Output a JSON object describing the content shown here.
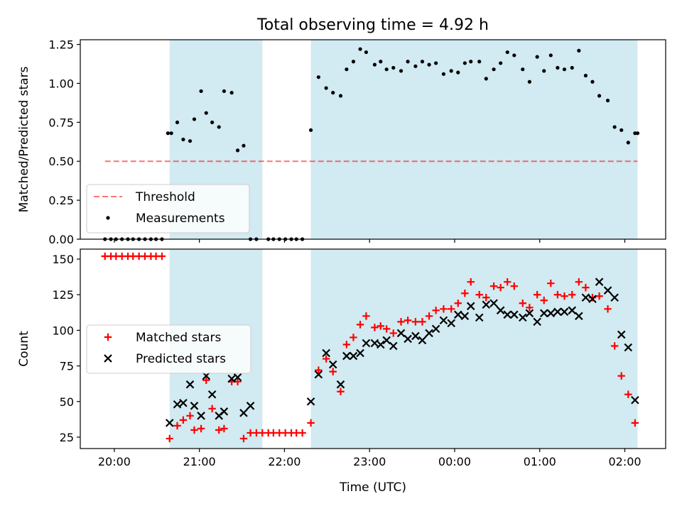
{
  "chart_data": {
    "title": "Total observing time = 4.92 h",
    "xlabel": "Time (UTC)",
    "x_ticks": [
      "20:00",
      "21:00",
      "22:00",
      "23:00",
      "00:00",
      "01:00",
      "02:00"
    ],
    "x_tick_hours": [
      0,
      1,
      2,
      3,
      4,
      5,
      6
    ],
    "x_range_hours": [
      -0.4,
      6.48
    ],
    "observing_windows_hours": [
      [
        0.65,
        1.74
      ],
      [
        2.31,
        6.15
      ]
    ],
    "window_color": "#add8e6",
    "panels": [
      {
        "type": "scatter",
        "ylabel": "Matched/Predicted stars",
        "ylim": [
          0,
          1.28
        ],
        "yticks": [
          "0.00",
          "0.25",
          "0.50",
          "0.75",
          "1.00",
          "1.25"
        ],
        "ytick_values": [
          0,
          0.25,
          0.5,
          0.75,
          1.0,
          1.25
        ],
        "legend": {
          "placement": "lower-left",
          "entries": [
            "Threshold",
            "Measurements"
          ]
        },
        "threshold": {
          "name": "Threshold",
          "value": 0.5,
          "x_range_hours": [
            -0.11,
            6.15
          ],
          "color": "#ff0000",
          "style": "dashed"
        },
        "series": [
          {
            "name": "Measurements",
            "color": "#000000",
            "x_hours": [
              -0.11,
              -0.04,
              0.02,
              0.09,
              0.16,
              0.22,
              0.29,
              0.36,
              0.43,
              0.49,
              0.56,
              0.63,
              0.67,
              0.74,
              0.81,
              0.89,
              0.94,
              1.02,
              1.08,
              1.15,
              1.23,
              1.29,
              1.38,
              1.45,
              1.52,
              1.6,
              1.67,
              1.81,
              1.87,
              1.94,
              2.01,
              2.08,
              2.14,
              2.21,
              2.31,
              2.4,
              2.49,
              2.57,
              2.66,
              2.73,
              2.81,
              2.89,
              2.96,
              3.06,
              3.13,
              3.2,
              3.28,
              3.37,
              3.45,
              3.54,
              3.62,
              3.7,
              3.78,
              3.87,
              3.96,
              4.04,
              4.12,
              4.19,
              4.29,
              4.37,
              4.46,
              4.54,
              4.62,
              4.7,
              4.8,
              4.88,
              4.97,
              5.05,
              5.13,
              5.21,
              5.29,
              5.38,
              5.46,
              5.54,
              5.62,
              5.7,
              5.8,
              5.88,
              5.96,
              6.04,
              6.12,
              6.15
            ],
            "values": [
              0,
              0,
              0,
              0,
              0,
              0,
              0,
              0,
              0,
              0,
              0,
              0.68,
              0.68,
              0.75,
              0.64,
              0.63,
              0.77,
              0.95,
              0.81,
              0.75,
              0.72,
              0.95,
              0.94,
              0.57,
              0.6,
              0,
              0,
              0,
              0,
              0,
              0,
              0,
              0,
              0,
              0.7,
              1.04,
              0.97,
              0.94,
              0.92,
              1.09,
              1.14,
              1.22,
              1.2,
              1.12,
              1.14,
              1.09,
              1.1,
              1.08,
              1.14,
              1.11,
              1.14,
              1.12,
              1.13,
              1.06,
              1.08,
              1.07,
              1.13,
              1.14,
              1.14,
              1.03,
              1.09,
              1.13,
              1.2,
              1.18,
              1.09,
              1.01,
              1.17,
              1.08,
              1.18,
              1.1,
              1.09,
              1.1,
              1.21,
              1.05,
              1.01,
              0.92,
              0.89,
              0.72,
              0.7,
              0.62,
              0.68,
              0.68
            ]
          }
        ]
      },
      {
        "type": "scatter",
        "ylabel": "Count",
        "ylim": [
          17,
          157
        ],
        "yticks": [
          "25",
          "50",
          "75",
          "100",
          "125",
          "150"
        ],
        "ytick_values": [
          25,
          50,
          75,
          100,
          125,
          150
        ],
        "legend": {
          "placement": "center-left",
          "entries": [
            "Matched stars",
            "Predicted stars"
          ]
        },
        "series": [
          {
            "name": "Matched stars",
            "marker": "plus",
            "color": "#ff0000",
            "x_hours": [
              -0.11,
              -0.04,
              0.02,
              0.09,
              0.16,
              0.22,
              0.29,
              0.36,
              0.43,
              0.49,
              0.56,
              0.65,
              0.74,
              0.81,
              0.89,
              0.94,
              1.02,
              1.08,
              1.15,
              1.23,
              1.29,
              1.38,
              1.45,
              1.52,
              1.6,
              1.67,
              1.74,
              1.81,
              1.87,
              1.94,
              2.01,
              2.08,
              2.14,
              2.21,
              2.31,
              2.4,
              2.49,
              2.57,
              2.66,
              2.73,
              2.81,
              2.89,
              2.96,
              3.06,
              3.13,
              3.2,
              3.28,
              3.37,
              3.45,
              3.54,
              3.62,
              3.7,
              3.78,
              3.87,
              3.96,
              4.04,
              4.12,
              4.19,
              4.29,
              4.37,
              4.46,
              4.54,
              4.62,
              4.7,
              4.8,
              4.88,
              4.97,
              5.05,
              5.13,
              5.21,
              5.29,
              5.38,
              5.46,
              5.54,
              5.62,
              5.7,
              5.8,
              5.88,
              5.96,
              6.04,
              6.12
            ],
            "values": [
              152,
              152,
              152,
              152,
              152,
              152,
              152,
              152,
              152,
              152,
              152,
              24,
              33,
              37,
              40,
              30,
              31,
              65,
              45,
              30,
              31,
              64,
              64,
              24,
              28,
              28,
              28,
              28,
              28,
              28,
              28,
              28,
              28,
              28,
              35,
              72,
              80,
              71,
              57,
              90,
              95,
              104,
              110,
              102,
              103,
              101,
              98,
              106,
              107,
              106,
              106,
              110,
              114,
              115,
              115,
              119,
              126,
              134,
              125,
              123,
              131,
              130,
              134,
              131,
              119,
              116,
              125,
              121,
              133,
              125,
              124,
              125,
              134,
              130,
              123,
              124,
              115,
              89,
              68,
              55,
              35
            ]
          },
          {
            "name": "Predicted stars",
            "marker": "x",
            "color": "#000000",
            "x_hours": [
              0.65,
              0.74,
              0.81,
              0.89,
              0.94,
              1.02,
              1.08,
              1.15,
              1.23,
              1.29,
              1.38,
              1.45,
              1.52,
              1.6,
              2.31,
              2.4,
              2.49,
              2.57,
              2.66,
              2.73,
              2.81,
              2.89,
              2.96,
              3.06,
              3.13,
              3.2,
              3.28,
              3.37,
              3.45,
              3.54,
              3.62,
              3.7,
              3.78,
              3.87,
              3.96,
              4.04,
              4.12,
              4.19,
              4.29,
              4.37,
              4.46,
              4.54,
              4.62,
              4.7,
              4.8,
              4.88,
              4.97,
              5.05,
              5.13,
              5.21,
              5.29,
              5.38,
              5.46,
              5.54,
              5.62,
              5.7,
              5.8,
              5.88,
              5.96,
              6.04,
              6.12
            ],
            "values": [
              35,
              48,
              49,
              62,
              47,
              40,
              68,
              55,
              40,
              43,
              66,
              67,
              42,
              47,
              50,
              69,
              84,
              76,
              62,
              82,
              82,
              84,
              91,
              91,
              90,
              93,
              89,
              98,
              94,
              96,
              93,
              98,
              101,
              107,
              105,
              111,
              110,
              117,
              109,
              118,
              119,
              114,
              111,
              111,
              109,
              112,
              106,
              112,
              112,
              113,
              113,
              114,
              110,
              123,
              122,
              134,
              128,
              123,
              97,
              88,
              51
            ]
          }
        ]
      }
    ]
  }
}
